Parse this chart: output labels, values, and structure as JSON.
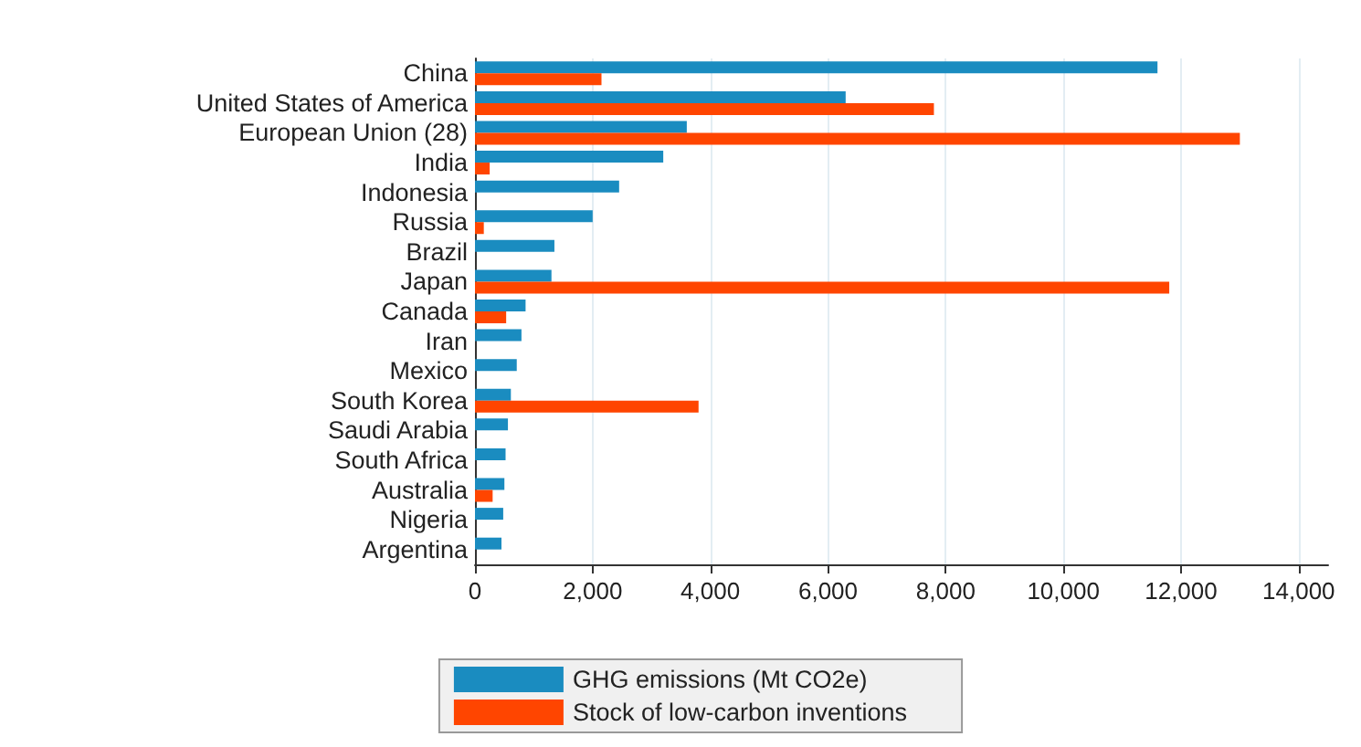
{
  "chart_data": {
    "type": "bar",
    "orientation": "horizontal",
    "categories": [
      "China",
      "United States of America",
      "European Union (28)",
      "India",
      "Indonesia",
      "Russia",
      "Brazil",
      "Japan",
      "Canada",
      "Iran",
      "Mexico",
      "South Korea",
      "Saudi Arabia",
      "South Africa",
      "Australia",
      "Nigeria",
      "Argentina"
    ],
    "series": [
      {
        "name": "GHG emissions (Mt CO2e)",
        "color": "#1a8cc0",
        "values": [
          11600,
          6300,
          3600,
          3200,
          2450,
          2000,
          1350,
          1300,
          860,
          790,
          710,
          610,
          560,
          520,
          500,
          480,
          450
        ]
      },
      {
        "name": "Stock of low-carbon inventions",
        "color": "#ff4500",
        "values": [
          2150,
          7800,
          13000,
          250,
          null,
          150,
          null,
          11800,
          530,
          null,
          null,
          3800,
          null,
          null,
          300,
          null,
          null
        ]
      }
    ],
    "xlim": [
      0,
      14500
    ],
    "xticks": [
      {
        "value": 0,
        "label": "0"
      },
      {
        "value": 2000,
        "label": "2,000"
      },
      {
        "value": 4000,
        "label": "4,000"
      },
      {
        "value": 6000,
        "label": "6,000"
      },
      {
        "value": 8000,
        "label": "8,000"
      },
      {
        "value": 10000,
        "label": "10,000"
      },
      {
        "value": 12000,
        "label": "12,000"
      },
      {
        "value": 14000,
        "label": "14,000"
      }
    ],
    "grid": "x",
    "legend": "bottom"
  }
}
